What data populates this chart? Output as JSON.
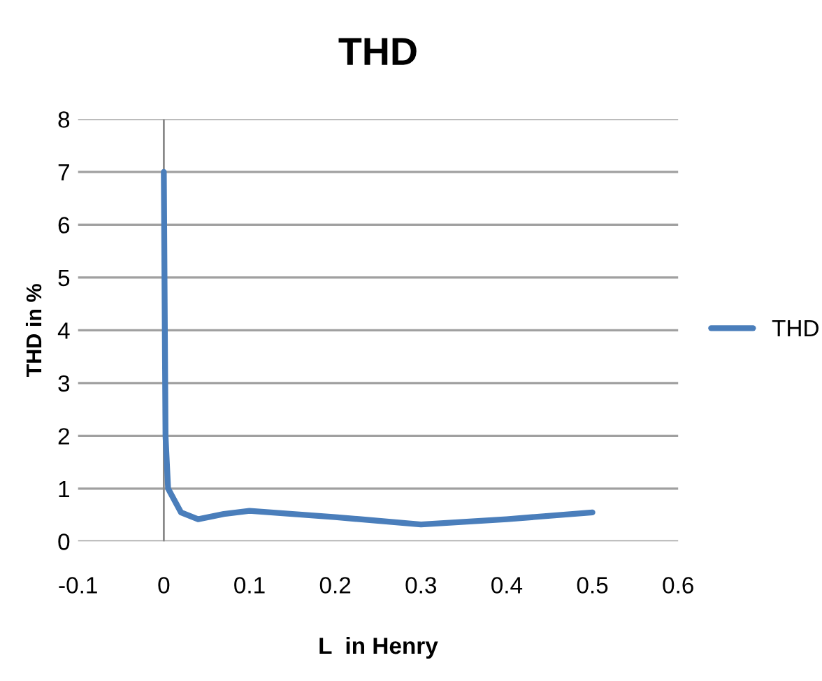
{
  "chart_data": {
    "type": "line",
    "title": "THD",
    "xlabel": "L  in Henry",
    "ylabel": "THD in %",
    "xlim": [
      -0.1,
      0.6
    ],
    "xticks": [
      {
        "value": -0.1,
        "label": "-0.1"
      },
      0,
      0.1,
      0.2,
      0.3,
      0.4,
      0.5,
      0.6
    ],
    "ylim": [
      0,
      8
    ],
    "yticks": [
      0,
      1,
      2,
      3,
      4,
      5,
      6,
      7,
      8
    ],
    "grid": "y",
    "legend": "right",
    "marker": "none",
    "line_style": "solid",
    "series": [
      {
        "name": "THD",
        "color": "#4a7ebb",
        "x": [
          0,
          0.002,
          0.005,
          0.02,
          0.04,
          0.07,
          0.1,
          0.2,
          0.3,
          0.4,
          0.5
        ],
        "values": [
          7,
          2,
          1,
          0.55,
          0.42,
          0.52,
          0.58,
          0.46,
          0.32,
          0.42,
          0.55
        ]
      }
    ]
  }
}
